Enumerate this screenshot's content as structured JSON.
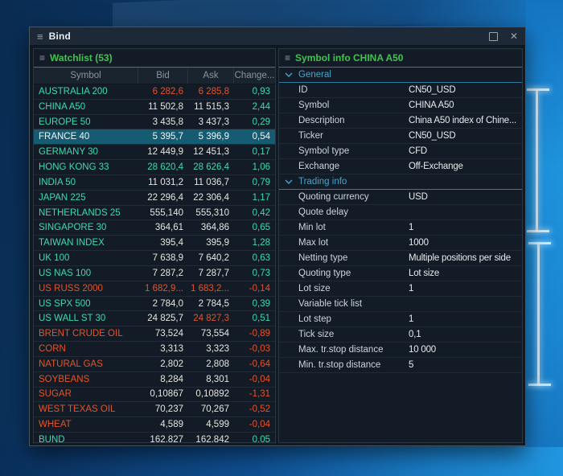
{
  "window": {
    "title": "Bind"
  },
  "colors": {
    "positive": "#3edaae",
    "negative": "#e4532a",
    "neutral_text": "#e6e6df",
    "panel_title_green": "#3fc44e",
    "section_teal": "#4ba3c7",
    "selection_bg": "#155b71",
    "cyan_divider": "#2b7c9e"
  },
  "watchlist": {
    "title": "Watchlist (53)",
    "columns": [
      "Symbol",
      "Bid",
      "Ask",
      "Change..."
    ],
    "rows": [
      {
        "symbol": "AUSTRALIA 200",
        "bid": "6 282,6",
        "ask": "6 285,8",
        "change": "0,93",
        "symbol_state": "up",
        "bid_state": "down",
        "ask_state": "down",
        "change_state": "up",
        "selected": false
      },
      {
        "symbol": "CHINA A50",
        "bid": "11 502,8",
        "ask": "11 515,3",
        "change": "2,44",
        "symbol_state": "up",
        "bid_state": "flat",
        "ask_state": "flat",
        "change_state": "up",
        "selected": false
      },
      {
        "symbol": "EUROPE 50",
        "bid": "3 435,8",
        "ask": "3 437,3",
        "change": "0,29",
        "symbol_state": "up",
        "bid_state": "flat",
        "ask_state": "flat",
        "change_state": "up",
        "selected": false
      },
      {
        "symbol": "FRANCE 40",
        "bid": "5 395,7",
        "ask": "5 396,9",
        "change": "0,54",
        "symbol_state": "up",
        "bid_state": "flat",
        "ask_state": "flat",
        "change_state": "up",
        "selected": true
      },
      {
        "symbol": "GERMANY 30",
        "bid": "12 449,9",
        "ask": "12 451,3",
        "change": "0,17",
        "symbol_state": "up",
        "bid_state": "flat",
        "ask_state": "flat",
        "change_state": "up",
        "selected": false
      },
      {
        "symbol": "HONG KONG 33",
        "bid": "28 620,4",
        "ask": "28 626,4",
        "change": "1,06",
        "symbol_state": "up",
        "bid_state": "up",
        "ask_state": "up",
        "change_state": "up",
        "selected": false
      },
      {
        "symbol": "INDIA 50",
        "bid": "11 031,2",
        "ask": "11 036,7",
        "change": "0,79",
        "symbol_state": "up",
        "bid_state": "flat",
        "ask_state": "flat",
        "change_state": "up",
        "selected": false
      },
      {
        "symbol": "JAPAN 225",
        "bid": "22 296,4",
        "ask": "22 306,4",
        "change": "1,17",
        "symbol_state": "up",
        "bid_state": "flat",
        "ask_state": "flat",
        "change_state": "up",
        "selected": false
      },
      {
        "symbol": "NETHERLANDS 25",
        "bid": "555,140",
        "ask": "555,310",
        "change": "0,42",
        "symbol_state": "up",
        "bid_state": "flat",
        "ask_state": "flat",
        "change_state": "up",
        "selected": false
      },
      {
        "symbol": "SINGAPORE 30",
        "bid": "364,61",
        "ask": "364,86",
        "change": "0,65",
        "symbol_state": "up",
        "bid_state": "flat",
        "ask_state": "flat",
        "change_state": "up",
        "selected": false
      },
      {
        "symbol": "TAIWAN INDEX",
        "bid": "395,4",
        "ask": "395,9",
        "change": "1,28",
        "symbol_state": "up",
        "bid_state": "flat",
        "ask_state": "flat",
        "change_state": "up",
        "selected": false
      },
      {
        "symbol": "UK 100",
        "bid": "7 638,9",
        "ask": "7 640,2",
        "change": "0,63",
        "symbol_state": "up",
        "bid_state": "flat",
        "ask_state": "flat",
        "change_state": "up",
        "selected": false
      },
      {
        "symbol": "US NAS 100",
        "bid": "7 287,2",
        "ask": "7 287,7",
        "change": "0,73",
        "symbol_state": "up",
        "bid_state": "flat",
        "ask_state": "flat",
        "change_state": "up",
        "selected": false
      },
      {
        "symbol": "US RUSS 2000",
        "bid": "1 682,9...",
        "ask": "1 683,2...",
        "change": "-0,14",
        "symbol_state": "down",
        "bid_state": "down",
        "ask_state": "down",
        "change_state": "down",
        "selected": false
      },
      {
        "symbol": "US SPX 500",
        "bid": "2 784,0",
        "ask": "2 784,5",
        "change": "0,39",
        "symbol_state": "up",
        "bid_state": "flat",
        "ask_state": "flat",
        "change_state": "up",
        "selected": false
      },
      {
        "symbol": "US WALL ST 30",
        "bid": "24 825,7",
        "ask": "24 827,3",
        "change": "0,51",
        "symbol_state": "up",
        "bid_state": "flat",
        "ask_state": "down",
        "change_state": "up",
        "selected": false
      },
      {
        "symbol": "BRENT CRUDE OIL",
        "bid": "73,524",
        "ask": "73,554",
        "change": "-0,89",
        "symbol_state": "down",
        "bid_state": "flat",
        "ask_state": "flat",
        "change_state": "down",
        "selected": false
      },
      {
        "symbol": "CORN",
        "bid": "3,313",
        "ask": "3,323",
        "change": "-0,03",
        "symbol_state": "down",
        "bid_state": "flat",
        "ask_state": "flat",
        "change_state": "down",
        "selected": false
      },
      {
        "symbol": "NATURAL GAS",
        "bid": "2,802",
        "ask": "2,808",
        "change": "-0,64",
        "symbol_state": "down",
        "bid_state": "flat",
        "ask_state": "flat",
        "change_state": "down",
        "selected": false
      },
      {
        "symbol": "SOYBEANS",
        "bid": "8,284",
        "ask": "8,301",
        "change": "-0,04",
        "symbol_state": "down",
        "bid_state": "flat",
        "ask_state": "flat",
        "change_state": "down",
        "selected": false
      },
      {
        "symbol": "SUGAR",
        "bid": "0,10867",
        "ask": "0,10892",
        "change": "-1,31",
        "symbol_state": "down",
        "bid_state": "flat",
        "ask_state": "flat",
        "change_state": "down",
        "selected": false
      },
      {
        "symbol": "WEST TEXAS OIL",
        "bid": "70,237",
        "ask": "70,267",
        "change": "-0,52",
        "symbol_state": "down",
        "bid_state": "flat",
        "ask_state": "flat",
        "change_state": "down",
        "selected": false
      },
      {
        "symbol": "WHEAT",
        "bid": "4,589",
        "ask": "4,599",
        "change": "-0,04",
        "symbol_state": "down",
        "bid_state": "flat",
        "ask_state": "flat",
        "change_state": "down",
        "selected": false
      },
      {
        "symbol": "BUND",
        "bid": "162,827",
        "ask": "162,842",
        "change": "0,05",
        "symbol_state": "up",
        "bid_state": "flat",
        "ask_state": "flat",
        "change_state": "up",
        "selected": false
      }
    ]
  },
  "symbol_info": {
    "title": "Symbol info CHINA A50",
    "sections": [
      {
        "title": "General",
        "rows": [
          {
            "label": "ID",
            "value": "CN50_USD"
          },
          {
            "label": "Symbol",
            "value": "CHINA A50"
          },
          {
            "label": "Description",
            "value": "China A50 index of Chine..."
          },
          {
            "label": "Ticker",
            "value": "CN50_USD"
          },
          {
            "label": "Symbol type",
            "value": "CFD"
          },
          {
            "label": "Exchange",
            "value": "Off-Exchange"
          }
        ]
      },
      {
        "title": "Trading info",
        "rows": [
          {
            "label": "Quoting currency",
            "value": "USD"
          },
          {
            "label": "Quote delay",
            "value": ""
          },
          {
            "label": "Min lot",
            "value": "1"
          },
          {
            "label": "Max lot",
            "value": "1000"
          },
          {
            "label": "Netting type",
            "value": "Multiple positions per side"
          },
          {
            "label": "Quoting type",
            "value": "Lot size"
          },
          {
            "label": "Lot size",
            "value": "1"
          },
          {
            "label": "Variable tick list",
            "value": ""
          },
          {
            "label": "Lot step",
            "value": "1"
          },
          {
            "label": "Tick size",
            "value": "0,1"
          },
          {
            "label": "Max. tr.stop distance",
            "value": "10 000"
          },
          {
            "label": "Min. tr.stop distance",
            "value": "5"
          }
        ]
      }
    ]
  }
}
